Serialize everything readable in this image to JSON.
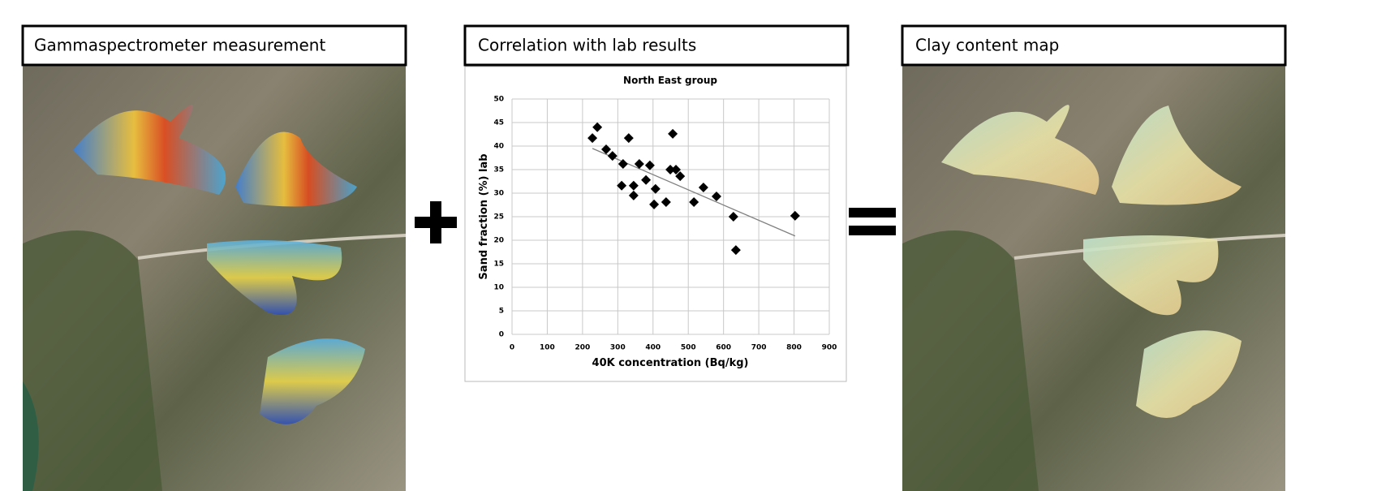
{
  "panels": [
    {
      "title": "Gammaspectrometer measurement"
    },
    {
      "title": "Correlation with lab results"
    },
    {
      "title": "Clay content map"
    }
  ],
  "chart_data": {
    "type": "scatter",
    "title": "North East group",
    "x_label": "40K concentration (Bq/kg)",
    "y_label": "Sand fraction (%) lab",
    "x": [
      228,
      242,
      267,
      285,
      331,
      315,
      311,
      345,
      345,
      361,
      380,
      391,
      407,
      403,
      437,
      449,
      456,
      465,
      477,
      516,
      543,
      580,
      628,
      635,
      803
    ],
    "values": [
      41.7,
      44.0,
      39.3,
      37.9,
      41.7,
      36.2,
      31.6,
      31.6,
      29.5,
      36.2,
      32.8,
      35.9,
      30.9,
      27.6,
      28.1,
      35.0,
      42.6,
      35.0,
      33.6,
      28.1,
      31.2,
      29.3,
      25.0,
      17.9,
      25.2
    ],
    "color": "#000000",
    "trendline": {
      "x": [
        228,
        803
      ],
      "values": [
        39.5,
        20.9
      ],
      "color": "#808080"
    },
    "xlim": [
      0,
      900
    ],
    "xticks": [
      0,
      100,
      200,
      300,
      400,
      500,
      600,
      700,
      800,
      900
    ],
    "ylim": [
      0,
      50
    ],
    "yticks": [
      0,
      5,
      10,
      15,
      20,
      25,
      30,
      35,
      40,
      45,
      50
    ],
    "grid": true
  }
}
